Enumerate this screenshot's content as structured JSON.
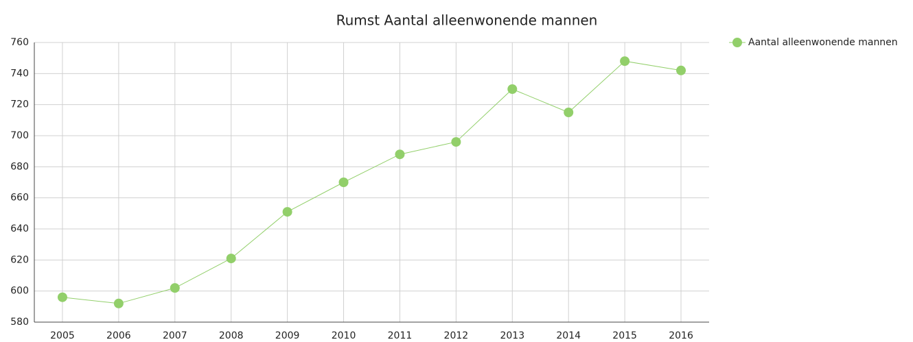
{
  "chart_data": {
    "type": "line",
    "title": "Rumst  Aantal alleenwonende mannen",
    "categories": [
      "2005",
      "2006",
      "2007",
      "2008",
      "2009",
      "2010",
      "2011",
      "2012",
      "2013",
      "2014",
      "2015",
      "2016"
    ],
    "series": [
      {
        "name": "Aantal alleenwonende mannen",
        "color": "#92cf6a",
        "values": [
          596,
          592,
          602,
          621,
          651,
          670,
          688,
          696,
          730,
          715,
          748,
          742
        ]
      }
    ],
    "ylim": [
      580,
      760
    ],
    "yticks": [
      580,
      600,
      620,
      640,
      660,
      680,
      700,
      720,
      740,
      760
    ],
    "grid": true,
    "legend": "top-right"
  }
}
